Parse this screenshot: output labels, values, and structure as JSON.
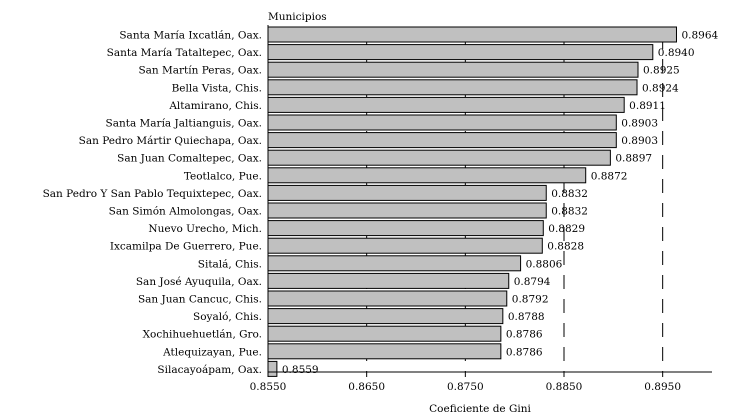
{
  "chart_data": {
    "type": "bar",
    "orientation": "horizontal",
    "title": "Municipios",
    "xlabel": "Coeficiente de Gini",
    "xlim": [
      0.855,
      0.9
    ],
    "xticks": [
      "0.8550",
      "0.8650",
      "0.8750",
      "0.8850",
      "0.8950"
    ],
    "grid": "vertical dashed",
    "categories": [
      "Santa María Ixcatlán, Oax.",
      "Santa María Tataltepec, Oax.",
      "San Martín Peras, Oax.",
      "Bella Vista, Chis.",
      "Altamirano, Chis.",
      "Santa María Jaltianguis, Oax.",
      "San Pedro Mártir Quiechapa, Oax.",
      "San Juan Comaltepec, Oax.",
      "Teotlalco, Pue.",
      "San Pedro Y San Pablo Tequixtepec, Oax.",
      "San Simón Almolongas, Oax.",
      "Nuevo Urecho, Mich.",
      "Ixcamilpa De Guerrero, Pue.",
      "Sitalá, Chis.",
      "San José Ayuquila, Oax.",
      "San Juan Cancuc, Chis.",
      "Soyaló, Chis.",
      "Xochihuehuetlán, Gro.",
      "Atlequizayan, Pue.",
      "Silacayoápam, Oax."
    ],
    "values": [
      0.8964,
      0.894,
      0.8925,
      0.8924,
      0.8911,
      0.8903,
      0.8903,
      0.8897,
      0.8872,
      0.8832,
      0.8832,
      0.8829,
      0.8828,
      0.8806,
      0.8794,
      0.8792,
      0.8788,
      0.8786,
      0.8786,
      0.8559
    ],
    "value_labels": [
      "0.8964",
      "0.8940",
      "0.8925",
      "0.8924",
      "0.8911",
      "0.8903",
      "0.8903",
      "0.8897",
      "0.8872",
      "0.8832",
      "0.8832",
      "0.8829",
      "0.8828",
      "0.8806",
      "0.8794",
      "0.8792",
      "0.8788",
      "0.8786",
      "0.8786",
      "0.8559"
    ],
    "bar_color": "#c0c0c0"
  }
}
